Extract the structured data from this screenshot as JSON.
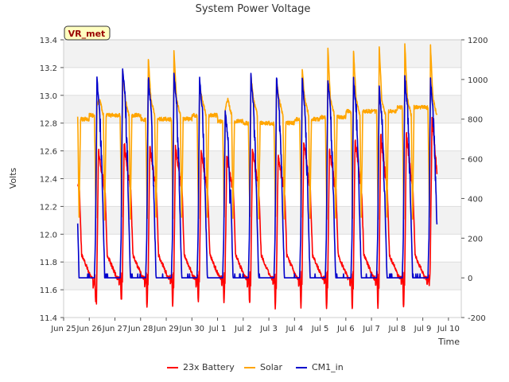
{
  "chart_data": {
    "type": "line",
    "title": "System Power Voltage",
    "xlabel": "Time",
    "ylabel": "Volts",
    "badge": "VR_met",
    "ylim": [
      11.4,
      13.4
    ],
    "y2lim": [
      -200,
      1200
    ],
    "xlim": [
      0,
      15.5
    ],
    "y_ticks": [
      "11.4",
      "11.6",
      "11.8",
      "12.0",
      "12.2",
      "12.4",
      "12.6",
      "12.8",
      "13.0",
      "13.2",
      "13.4"
    ],
    "y2_ticks": [
      "-200",
      "0",
      "200",
      "400",
      "600",
      "800",
      "1000",
      "1200"
    ],
    "x_ticks": [
      "Jun 25",
      "Jun 26",
      "Jun 27",
      "Jun 28",
      "Jun 29",
      "Jun 30",
      "Jul 1",
      "Jul 2",
      "Jul 3",
      "Jul 4",
      "Jul 5",
      "Jul 6",
      "Jul 7",
      "Jul 8",
      "Jul 9",
      "Jul 10"
    ],
    "x_tick_days": [
      0,
      1,
      2,
      3,
      4,
      5,
      6,
      7,
      8,
      9,
      10,
      11,
      12,
      13,
      14,
      15
    ],
    "grid": true,
    "legend_position": "bottom-center",
    "series": [
      {
        "name": "23x Battery",
        "color": "#ff0000",
        "axis": "left",
        "start_day": 0.55,
        "end_day": 14.55,
        "daily_peak_volts": [
          12.6,
          12.6,
          12.65,
          12.63,
          12.63,
          12.6,
          12.55,
          12.6,
          12.55,
          12.66,
          12.6,
          12.68,
          12.71,
          12.72,
          12.83
        ],
        "daily_min_volts": [
          11.5,
          11.51,
          11.52,
          11.48,
          11.47,
          11.51,
          11.52,
          11.5,
          11.47,
          11.48,
          11.46,
          11.46,
          11.47,
          11.47,
          11.64
        ]
      },
      {
        "name": "Solar",
        "color": "#ffa500",
        "axis": "right",
        "start_day": 0.55,
        "end_day": 14.55,
        "daily_peak_watts": [
          980,
          870,
          1050,
          1110,
          1140,
          960,
          850,
          1020,
          990,
          1050,
          1160,
          1150,
          1170,
          1180,
          1170
        ],
        "plateau_watts": [
          800,
          820,
          820,
          800,
          800,
          820,
          790,
          780,
          780,
          800,
          810,
          840,
          840,
          860,
          860
        ]
      },
      {
        "name": "CM1_in",
        "color": "#0000cc",
        "axis": "right",
        "start_day": 0.55,
        "end_day": 14.55,
        "daily_peak_watts": [
          1000,
          1000,
          1060,
          1010,
          1030,
          1000,
          850,
          1020,
          1010,
          1000,
          1000,
          1000,
          960,
          1010,
          1000
        ],
        "baseline_watts": 0
      }
    ]
  }
}
